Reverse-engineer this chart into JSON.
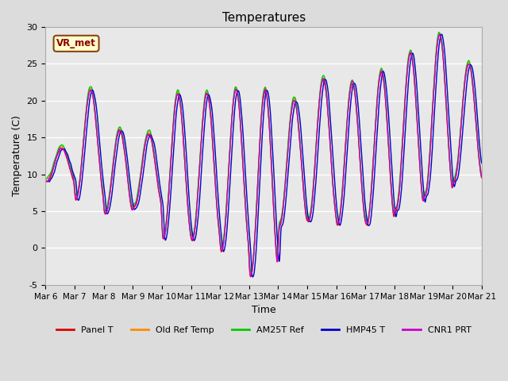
{
  "title": "Temperatures",
  "xlabel": "Time",
  "ylabel": "Temperature (C)",
  "ylim": [
    -5,
    30
  ],
  "background_color": "#dcdcdc",
  "plot_bg_color": "#e8e8e8",
  "grid_color": "white",
  "annotation_text": "VR_met",
  "annotation_color": "#8b0000",
  "annotation_bg": "#ffffcc",
  "annotation_border": "#8b4513",
  "series": [
    {
      "label": "Panel T",
      "color": "#dd0000",
      "lw": 1.0
    },
    {
      "label": "Old Ref Temp",
      "color": "#ff8c00",
      "lw": 1.0
    },
    {
      "label": "AM25T Ref",
      "color": "#00cc00",
      "lw": 1.0
    },
    {
      "label": "HMP45 T",
      "color": "#0000cc",
      "lw": 1.0
    },
    {
      "label": "CNR1 PRT",
      "color": "#cc00cc",
      "lw": 1.0
    }
  ],
  "xtick_labels": [
    "Mar 6",
    "Mar 7",
    "Mar 8",
    "Mar 9",
    "Mar 10",
    "Mar 11",
    "Mar 12",
    "Mar 13",
    "Mar 14",
    "Mar 15",
    "Mar 16",
    "Mar 17",
    "Mar 18",
    "Mar 19",
    "Mar 20",
    "Mar 21"
  ],
  "ytick_values": [
    -5,
    0,
    5,
    10,
    15,
    20,
    25,
    30
  ],
  "n_days": 15,
  "n_per_day": 144
}
